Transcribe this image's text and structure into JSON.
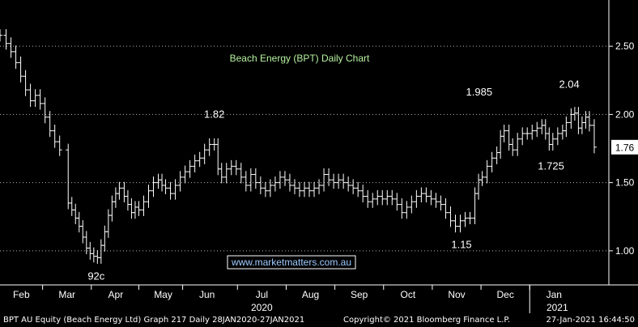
{
  "chart_data": {
    "type": "line",
    "title": "Beach Energy (BPT) Daily Chart",
    "watermark": "www.marketmatters.com.au",
    "y_axis": {
      "ticks": [
        1.0,
        1.5,
        2.0,
        2.5
      ],
      "tick_labels": [
        "1.00",
        "1.50",
        "2.00",
        "2.50"
      ],
      "ylim": [
        0.75,
        2.75
      ],
      "side": "right"
    },
    "x_axis": {
      "months": [
        "Feb",
        "Mar",
        "Apr",
        "May",
        "Jun",
        "Jul",
        "Aug",
        "Sep",
        "Oct",
        "Nov",
        "Dec",
        "Jan"
      ],
      "years": [
        "2020",
        "2021"
      ],
      "xlim": [
        0,
        1.0
      ]
    },
    "last_price_label": "1.76",
    "annotations": [
      {
        "text": "92c",
        "x": 0.158,
        "y": 0.92
      },
      {
        "text": "1.82",
        "x": 0.352,
        "y": 1.82
      },
      {
        "text": "1.15",
        "x": 0.758,
        "y": 1.15
      },
      {
        "text": "1.985",
        "x": 0.787,
        "y": 1.985
      },
      {
        "text": "1.725",
        "x": 0.905,
        "y": 1.725
      },
      {
        "text": "2.04",
        "x": 0.935,
        "y": 2.04
      }
    ],
    "series": [
      {
        "style": "ohlc-bars",
        "points": [
          [
            0.0,
            2.58
          ],
          [
            0.01,
            2.52
          ],
          [
            0.018,
            2.46
          ],
          [
            0.026,
            2.38
          ],
          [
            0.034,
            2.28
          ],
          [
            0.042,
            2.18
          ],
          [
            0.05,
            2.1
          ],
          [
            0.058,
            2.14
          ],
          [
            0.066,
            2.08
          ],
          [
            0.074,
            1.98
          ],
          [
            0.082,
            1.88
          ],
          [
            0.09,
            1.8
          ],
          [
            0.098,
            1.74
          ],
          [
            0.112,
            1.35
          ],
          [
            0.118,
            1.3
          ],
          [
            0.124,
            1.24
          ],
          [
            0.13,
            1.18
          ],
          [
            0.136,
            1.1
          ],
          [
            0.142,
            1.02
          ],
          [
            0.148,
            0.98
          ],
          [
            0.154,
            0.96
          ],
          [
            0.16,
            0.95
          ],
          [
            0.166,
            1.04
          ],
          [
            0.172,
            1.14
          ],
          [
            0.178,
            1.26
          ],
          [
            0.184,
            1.36
          ],
          [
            0.19,
            1.42
          ],
          [
            0.196,
            1.46
          ],
          [
            0.204,
            1.4
          ],
          [
            0.21,
            1.34
          ],
          [
            0.216,
            1.28
          ],
          [
            0.222,
            1.32
          ],
          [
            0.228,
            1.3
          ],
          [
            0.236,
            1.36
          ],
          [
            0.244,
            1.44
          ],
          [
            0.252,
            1.5
          ],
          [
            0.26,
            1.52
          ],
          [
            0.266,
            1.48
          ],
          [
            0.272,
            1.46
          ],
          [
            0.28,
            1.42
          ],
          [
            0.288,
            1.48
          ],
          [
            0.296,
            1.54
          ],
          [
            0.304,
            1.58
          ],
          [
            0.312,
            1.62
          ],
          [
            0.32,
            1.66
          ],
          [
            0.328,
            1.68
          ],
          [
            0.336,
            1.74
          ],
          [
            0.344,
            1.78
          ],
          [
            0.352,
            1.78
          ],
          [
            0.358,
            1.6
          ],
          [
            0.364,
            1.54
          ],
          [
            0.372,
            1.6
          ],
          [
            0.38,
            1.62
          ],
          [
            0.388,
            1.6
          ],
          [
            0.396,
            1.54
          ],
          [
            0.404,
            1.48
          ],
          [
            0.412,
            1.56
          ],
          [
            0.42,
            1.5
          ],
          [
            0.428,
            1.46
          ],
          [
            0.436,
            1.44
          ],
          [
            0.444,
            1.48
          ],
          [
            0.452,
            1.5
          ],
          [
            0.46,
            1.54
          ],
          [
            0.468,
            1.52
          ],
          [
            0.476,
            1.48
          ],
          [
            0.484,
            1.46
          ],
          [
            0.492,
            1.44
          ],
          [
            0.5,
            1.46
          ],
          [
            0.508,
            1.44
          ],
          [
            0.516,
            1.46
          ],
          [
            0.524,
            1.48
          ],
          [
            0.532,
            1.56
          ],
          [
            0.54,
            1.52
          ],
          [
            0.548,
            1.5
          ],
          [
            0.556,
            1.52
          ],
          [
            0.564,
            1.5
          ],
          [
            0.572,
            1.48
          ],
          [
            0.58,
            1.46
          ],
          [
            0.588,
            1.44
          ],
          [
            0.596,
            1.4
          ],
          [
            0.604,
            1.36
          ],
          [
            0.612,
            1.38
          ],
          [
            0.62,
            1.4
          ],
          [
            0.628,
            1.38
          ],
          [
            0.636,
            1.4
          ],
          [
            0.644,
            1.38
          ],
          [
            0.652,
            1.34
          ],
          [
            0.66,
            1.28
          ],
          [
            0.668,
            1.32
          ],
          [
            0.676,
            1.36
          ],
          [
            0.684,
            1.4
          ],
          [
            0.692,
            1.42
          ],
          [
            0.7,
            1.4
          ],
          [
            0.708,
            1.38
          ],
          [
            0.716,
            1.36
          ],
          [
            0.724,
            1.34
          ],
          [
            0.732,
            1.28
          ],
          [
            0.74,
            1.22
          ],
          [
            0.748,
            1.18
          ],
          [
            0.756,
            1.22
          ],
          [
            0.764,
            1.24
          ],
          [
            0.772,
            1.24
          ],
          [
            0.78,
            1.42
          ],
          [
            0.786,
            1.52
          ],
          [
            0.792,
            1.54
          ],
          [
            0.8,
            1.62
          ],
          [
            0.808,
            1.68
          ],
          [
            0.816,
            1.72
          ],
          [
            0.822,
            1.84
          ],
          [
            0.828,
            1.88
          ],
          [
            0.836,
            1.78
          ],
          [
            0.842,
            1.74
          ],
          [
            0.85,
            1.82
          ],
          [
            0.858,
            1.86
          ],
          [
            0.866,
            1.86
          ],
          [
            0.874,
            1.88
          ],
          [
            0.882,
            1.9
          ],
          [
            0.89,
            1.92
          ],
          [
            0.896,
            1.86
          ],
          [
            0.902,
            1.78
          ],
          [
            0.908,
            1.82
          ],
          [
            0.916,
            1.86
          ],
          [
            0.924,
            1.88
          ],
          [
            0.93,
            1.94
          ],
          [
            0.938,
            2.0
          ],
          [
            0.944,
            2.01
          ],
          [
            0.95,
            1.9
          ],
          [
            0.956,
            1.94
          ],
          [
            0.962,
            1.98
          ],
          [
            0.968,
            1.92
          ],
          [
            0.976,
            1.76
          ]
        ]
      }
    ]
  },
  "footer": {
    "left": "BPT AU Equity (Beach Energy Ltd) Graph 217  Daily 28JAN2020-27JAN2021",
    "center": "Copyright© 2021 Bloomberg Finance L.P.",
    "right": "27-Jan-2021 16:44:50"
  },
  "colors": {
    "background": "#000000",
    "bars": "#ffffff",
    "title": "#b6f2a0",
    "grid": "#ffffff",
    "last_price_bg": "#ffffff",
    "last_price_text": "#000000",
    "watermark_text": "#9ecbff"
  }
}
